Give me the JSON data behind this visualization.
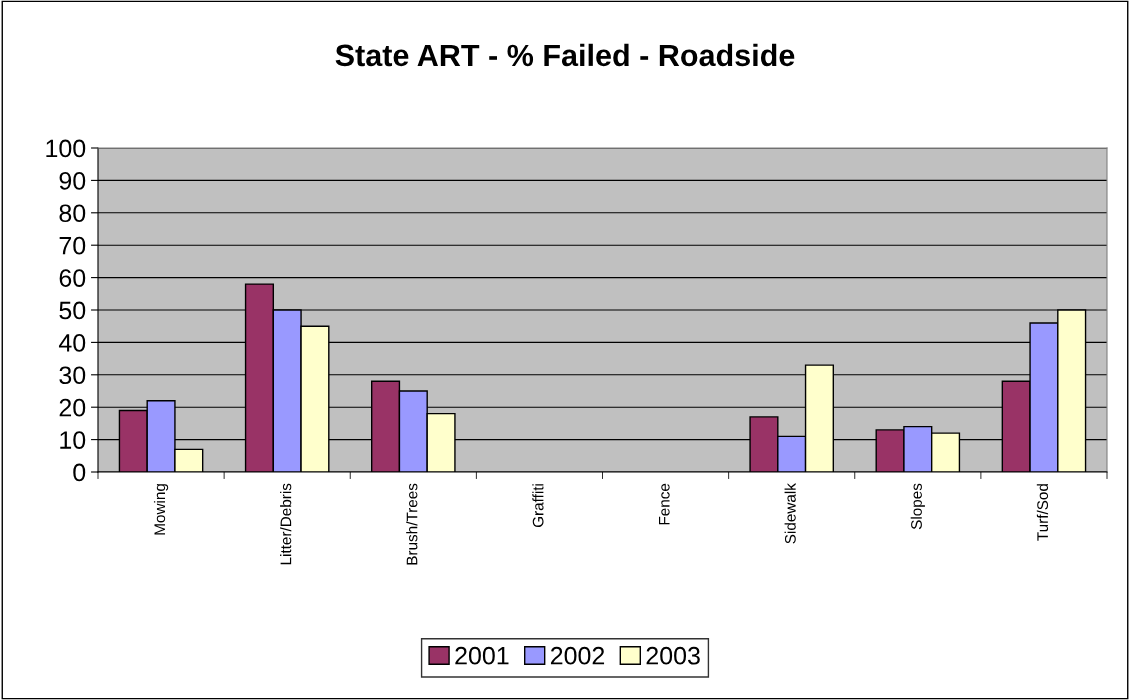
{
  "chart_data": {
    "type": "bar",
    "title": "State ART - % Failed - Roadside",
    "categories": [
      "Mowing",
      "Litter/Debris",
      "Brush/Trees",
      "Graffiti",
      "Fence",
      "Sidewalk",
      "Slopes",
      "Turf/Sod"
    ],
    "series": [
      {
        "name": "2001",
        "color": "#993366",
        "values": [
          19,
          58,
          28,
          null,
          null,
          17,
          13,
          28
        ]
      },
      {
        "name": "2002",
        "color": "#9999ff",
        "values": [
          22,
          50,
          25,
          null,
          null,
          11,
          14,
          46
        ]
      },
      {
        "name": "2003",
        "color": "#ffffcc",
        "values": [
          7,
          45,
          18,
          null,
          null,
          33,
          12,
          50
        ]
      }
    ],
    "ylim": [
      0,
      100
    ],
    "yticks": [
      0,
      10,
      20,
      30,
      40,
      50,
      60,
      70,
      80,
      90,
      100
    ],
    "grid": "y",
    "legend": "bottom"
  }
}
